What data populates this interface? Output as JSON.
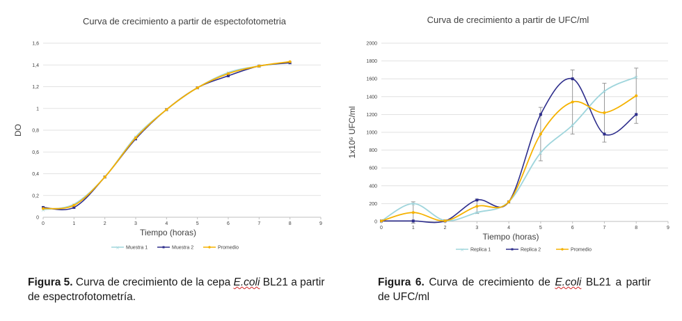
{
  "chart_data": [
    {
      "type": "line",
      "title": "Curva de crecimiento a partir de espectofotometria",
      "xlabel": "Tiempo (horas)",
      "ylabel": "DO",
      "xlim": [
        0,
        9
      ],
      "ylim": [
        0,
        1.6
      ],
      "x_ticks": [
        "0",
        "1",
        "2",
        "3",
        "4",
        "5",
        "6",
        "7",
        "8",
        "9"
      ],
      "y_ticks": [
        "0",
        "0,2",
        "0,4",
        "0,6",
        "0,8",
        "1",
        "1,2",
        "1,4",
        "1,6"
      ],
      "grid": "horizontal",
      "legend_position": "bottom",
      "x": [
        0,
        1,
        2,
        3,
        4,
        5,
        6,
        7,
        8
      ],
      "series": [
        {
          "name": "Muestra 1",
          "color": "#9fd5dc",
          "values": [
            0.07,
            0.12,
            0.37,
            0.74,
            0.99,
            1.19,
            1.33,
            1.39,
            1.42
          ]
        },
        {
          "name": "Muestra 2",
          "color": "#2e2e8c",
          "values": [
            0.09,
            0.09,
            0.37,
            0.72,
            0.99,
            1.19,
            1.3,
            1.39,
            1.42
          ]
        },
        {
          "name": "Promedio",
          "color": "#f5b200",
          "values": [
            0.08,
            0.11,
            0.37,
            0.73,
            0.99,
            1.19,
            1.32,
            1.39,
            1.43
          ]
        }
      ]
    },
    {
      "type": "line",
      "title": "Curva de crecimiento a partir de UFC/ml",
      "xlabel": "Tiempo (horas)",
      "ylabel": "1x10⁶ UFC/ml",
      "xlim": [
        0,
        9
      ],
      "ylim": [
        0,
        2000
      ],
      "x_ticks": [
        "0",
        "1",
        "2",
        "3",
        "4",
        "5",
        "6",
        "7",
        "8",
        "9"
      ],
      "y_ticks": [
        "0",
        "200",
        "400",
        "600",
        "800",
        "1000",
        "1200",
        "1400",
        "1600",
        "1800",
        "2000"
      ],
      "grid": "horizontal",
      "legend_position": "bottom",
      "x": [
        0,
        1,
        2,
        3,
        4,
        5,
        6,
        7,
        8
      ],
      "series": [
        {
          "name": "Replica 1",
          "color": "#9fd5dc",
          "values": [
            5,
            200,
            10,
            100,
            220,
            770,
            1080,
            1460,
            1620
          ]
        },
        {
          "name": "Replica 2",
          "color": "#2e2e8c",
          "values": [
            5,
            5,
            5,
            240,
            220,
            1200,
            1600,
            980,
            1200
          ]
        },
        {
          "name": "Promedio",
          "color": "#f5b200",
          "values": [
            5,
            100,
            7,
            170,
            220,
            980,
            1340,
            1220,
            1410
          ],
          "error": [
            0,
            120,
            0,
            80,
            0,
            300,
            360,
            330,
            310
          ]
        }
      ]
    }
  ],
  "captions": {
    "fig5": {
      "label": "Figura 5.",
      "pre": " Curva de crecimiento de la cepa ",
      "organism": "E.coli",
      "post": " BL21 a partir de espectrofotometría."
    },
    "fig6": {
      "label": "Figura 6.",
      "pre": " Curva de crecimiento de ",
      "organism": "E.coli",
      "post": " BL21 a partir de UFC/ml"
    }
  }
}
